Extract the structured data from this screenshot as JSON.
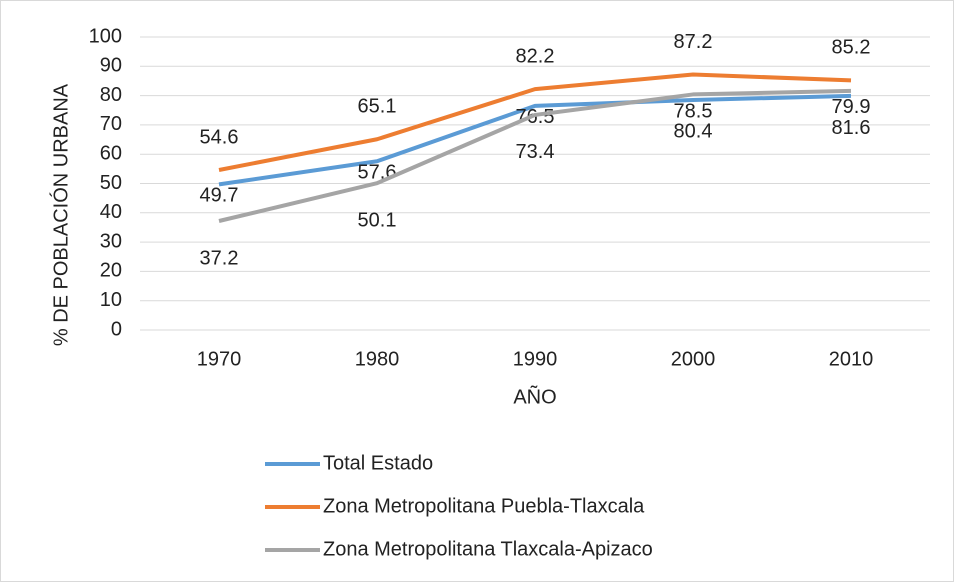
{
  "chart_data": {
    "type": "line",
    "categories": [
      "1970",
      "1980",
      "1990",
      "2000",
      "2010"
    ],
    "series": [
      {
        "name": "Total Estado",
        "color": "#5b9bd5",
        "values": [
          49.7,
          57.6,
          76.5,
          78.5,
          79.9
        ]
      },
      {
        "name": "Zona Metropolitana Puebla-Tlaxcala",
        "color": "#ed7d31",
        "values": [
          54.6,
          65.1,
          82.2,
          87.2,
          85.2
        ]
      },
      {
        "name": "Zona Metropolitana Tlaxcala-Apizaco",
        "color": "#a5a5a5",
        "values": [
          37.2,
          50.1,
          73.4,
          80.4,
          81.6
        ]
      }
    ],
    "xlabel": "AÑO",
    "ylabel": "% DE POBLACIÓN URBANA",
    "ylim": [
      0,
      100
    ],
    "yticks": [
      0,
      10,
      20,
      30,
      40,
      50,
      60,
      70,
      80,
      90,
      100
    ],
    "grid": true,
    "legend": "bottom"
  }
}
